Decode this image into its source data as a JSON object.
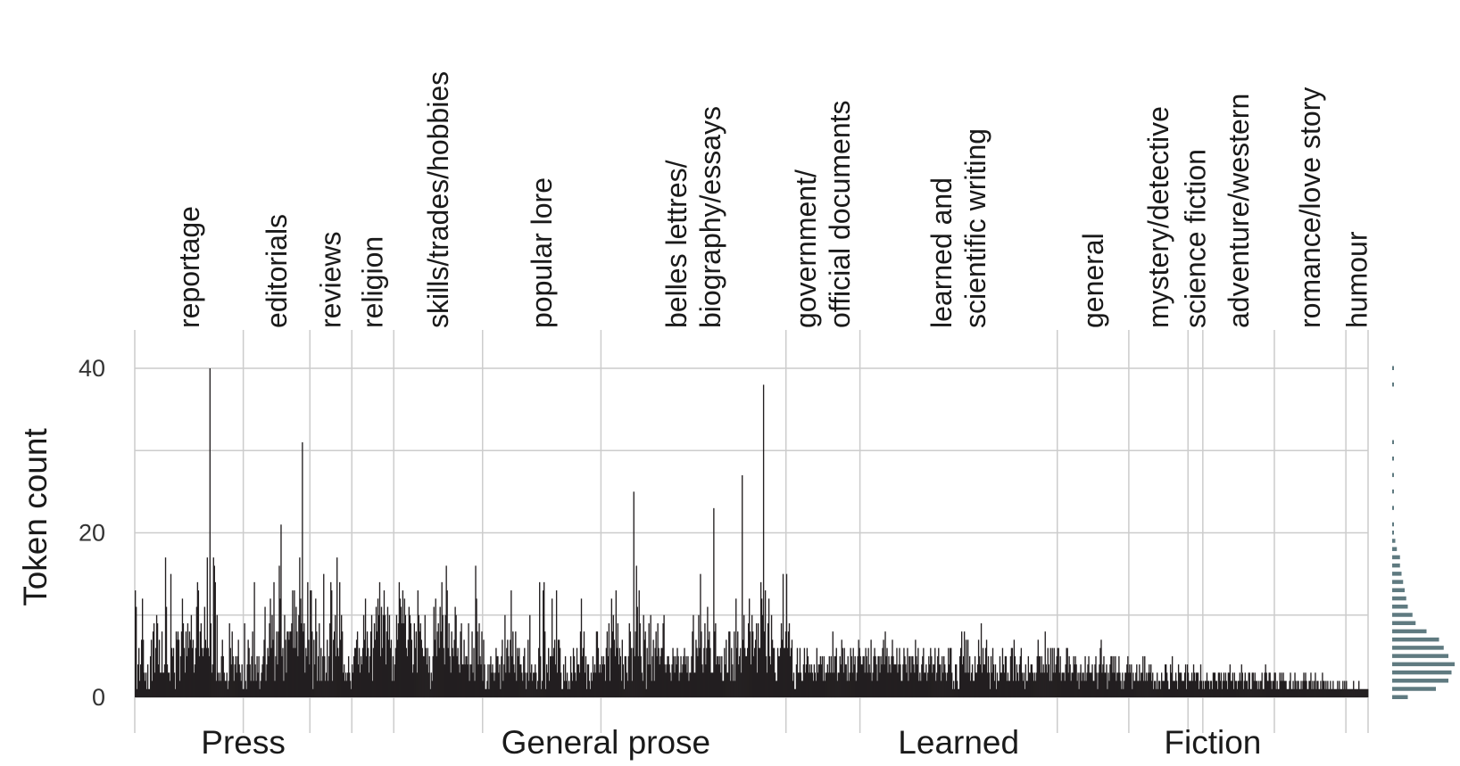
{
  "colors": {
    "bar": "#231f20",
    "grid": "#cccccc",
    "histogram": "#5f7a80",
    "background": "#ffffff"
  },
  "chart_data": {
    "type": "bar",
    "ylabel": "Token count",
    "ylim": [
      0,
      40
    ],
    "y_ticks": [
      0,
      20,
      40
    ],
    "grid": true,
    "genres": [
      {
        "label": "reportage",
        "lines": [
          "reportage"
        ],
        "group": "Press",
        "count": 44
      },
      {
        "label": "editorials",
        "lines": [
          "editorials"
        ],
        "group": "Press",
        "count": 27
      },
      {
        "label": "reviews",
        "lines": [
          "reviews"
        ],
        "group": "Press",
        "count": 17
      },
      {
        "label": "religion",
        "lines": [
          "religion"
        ],
        "group": "General prose",
        "count": 17
      },
      {
        "label": "skills/trades/hobbies",
        "lines": [
          "skills/trades/hobbies"
        ],
        "group": "General prose",
        "count": 36
      },
      {
        "label": "popular lore",
        "lines": [
          "popular lore"
        ],
        "group": "General prose",
        "count": 48
      },
      {
        "label": "belles lettres/ biography/essays",
        "lines": [
          "belles lettres/",
          "biography/essays"
        ],
        "group": "General prose",
        "count": 75
      },
      {
        "label": "government/ official documents",
        "lines": [
          "government/",
          "official documents"
        ],
        "group": "General prose",
        "count": 30
      },
      {
        "label": "learned and scientific writing",
        "lines": [
          "learned and",
          "scientific writing"
        ],
        "group": "Learned",
        "count": 80
      },
      {
        "label": "general",
        "lines": [
          "general"
        ],
        "group": "Fiction",
        "count": 29
      },
      {
        "label": "mystery/detective",
        "lines": [
          "mystery/detective"
        ],
        "group": "Fiction",
        "count": 24
      },
      {
        "label": "science fiction",
        "lines": [
          "science fiction"
        ],
        "group": "Fiction",
        "count": 6
      },
      {
        "label": "adventure/western",
        "lines": [
          "adventure/western"
        ],
        "group": "Fiction",
        "count": 29
      },
      {
        "label": "romance/love story",
        "lines": [
          "romance/love story"
        ],
        "group": "Fiction",
        "count": 29
      },
      {
        "label": "humour",
        "lines": [
          "humour"
        ],
        "group": "Fiction",
        "count": 9
      }
    ],
    "groups": [
      "Press",
      "General prose",
      "Learned",
      "Fiction"
    ],
    "values": [
      13,
      11,
      1,
      4,
      6,
      2,
      4,
      7,
      12,
      7,
      3,
      2,
      3,
      1,
      4,
      1,
      1,
      5,
      7,
      2,
      8,
      9,
      3,
      6,
      10,
      9,
      4,
      7,
      3,
      3,
      8,
      3,
      3,
      4,
      17,
      11,
      4,
      3,
      3,
      2,
      15,
      6,
      5,
      6,
      3,
      1,
      8,
      7,
      8,
      7,
      2,
      5,
      8,
      12,
      9,
      6,
      3,
      8,
      5,
      9,
      6,
      8,
      7,
      10,
      6,
      7,
      3,
      4,
      6,
      11,
      14,
      13,
      5,
      8,
      9,
      6,
      5,
      6,
      11,
      7,
      6,
      17,
      6,
      5,
      40,
      9,
      3,
      4,
      17,
      16,
      14,
      2,
      10,
      3,
      2,
      3,
      2,
      5,
      7,
      5,
      3,
      2,
      2,
      3,
      1,
      2,
      9,
      6,
      4,
      8,
      5,
      2,
      4,
      5,
      3,
      5,
      7,
      4,
      3,
      2,
      4,
      1,
      1,
      9,
      2,
      1,
      4,
      7,
      6,
      4,
      2,
      5,
      8,
      2,
      14,
      4,
      2,
      5,
      3,
      5,
      1,
      2,
      3,
      4,
      5,
      7,
      11,
      2,
      4,
      6,
      5,
      9,
      12,
      6,
      10,
      7,
      14,
      2,
      5,
      8,
      4,
      8,
      16,
      12,
      21,
      5,
      6,
      2,
      10,
      7,
      3,
      8,
      8,
      7,
      8,
      8,
      9,
      13,
      6,
      13,
      6,
      11,
      8,
      5,
      10,
      17,
      12,
      9,
      31,
      8,
      9,
      3,
      6,
      5,
      14,
      7,
      4,
      13,
      13,
      8,
      1,
      7,
      4,
      12,
      8,
      2,
      5,
      9,
      2,
      6,
      2,
      5,
      15,
      5,
      2,
      3,
      7,
      2,
      5,
      9,
      14,
      13,
      2,
      7,
      8,
      10,
      5,
      17,
      6,
      5,
      14,
      7,
      10,
      8,
      3,
      4,
      2,
      3,
      2,
      3,
      5,
      3,
      2,
      1,
      4,
      3,
      5,
      6,
      6,
      7,
      8,
      4,
      6,
      3,
      5,
      4,
      6,
      10,
      7,
      12,
      5,
      8,
      6,
      3,
      5,
      8,
      10,
      2,
      6,
      9,
      7,
      11,
      8,
      12,
      10,
      14,
      5,
      11,
      6,
      10,
      13,
      10,
      4,
      8,
      11,
      7,
      10,
      6,
      7,
      2,
      5,
      2,
      4,
      6,
      10,
      7,
      9,
      14,
      12,
      11,
      9,
      13,
      9,
      12,
      10,
      6,
      5,
      7,
      11,
      10,
      9,
      7,
      3,
      4,
      9,
      6,
      8,
      3,
      13,
      10,
      8,
      9,
      7,
      6,
      5,
      5,
      10,
      6,
      4,
      6,
      3,
      5,
      1,
      3,
      2,
      5,
      11,
      7,
      12,
      5,
      8,
      9,
      6,
      11,
      8,
      14,
      10,
      6,
      4,
      10,
      16,
      13,
      6,
      9,
      5,
      3,
      8,
      6,
      5,
      7,
      11,
      10,
      5,
      6,
      4,
      3,
      8,
      9,
      4,
      4,
      7,
      4,
      5,
      5,
      4,
      9,
      2,
      4,
      4,
      8,
      3,
      6,
      2,
      16,
      12,
      8,
      4,
      9,
      5,
      4,
      8,
      2,
      7,
      4,
      1,
      1,
      2,
      4,
      1,
      4,
      5,
      3,
      4,
      3,
      2,
      3,
      6,
      5,
      5,
      3,
      4,
      1,
      5,
      7,
      2,
      4,
      10,
      3,
      6,
      7,
      5,
      3,
      7,
      13,
      5,
      8,
      4,
      3,
      8,
      2,
      6,
      5,
      6,
      4,
      4,
      3,
      2,
      5,
      6,
      3,
      1,
      3,
      7,
      2,
      10,
      3,
      4,
      2,
      3,
      3,
      4,
      3,
      1,
      2,
      6,
      14,
      5,
      1,
      2,
      13,
      14,
      8,
      1,
      4,
      3,
      6,
      2,
      5,
      5,
      12,
      5,
      6,
      7,
      4,
      13,
      3,
      7,
      7,
      6,
      3,
      1,
      1,
      4,
      2,
      5,
      2,
      3,
      1,
      2,
      1,
      5,
      3,
      2,
      6,
      5,
      3,
      2,
      6,
      4,
      4,
      3,
      8,
      12,
      5,
      6,
      8,
      3,
      5,
      1,
      4,
      4,
      2,
      1,
      3,
      2,
      5,
      3,
      4,
      3,
      8,
      8,
      6,
      3,
      4,
      3,
      5,
      4,
      5,
      4,
      2,
      6,
      8,
      5,
      9,
      2,
      6,
      12,
      8,
      10,
      7,
      5,
      13,
      6,
      9,
      4,
      6,
      5,
      2,
      7,
      4,
      1,
      5,
      5,
      3,
      2,
      5,
      9,
      8,
      6,
      2,
      6,
      25,
      5,
      8,
      16,
      11,
      5,
      13,
      9,
      5,
      3,
      2,
      10,
      7,
      8,
      1,
      6,
      4,
      9,
      4,
      10,
      2,
      5,
      7,
      2,
      6,
      8,
      5,
      9,
      6,
      4,
      5,
      6,
      6,
      9,
      10,
      4,
      3,
      4,
      5,
      5,
      4,
      3,
      2,
      4,
      6,
      5,
      3,
      5,
      4,
      6,
      5,
      2,
      3,
      5,
      3,
      4,
      5,
      6,
      4,
      5,
      3,
      5,
      2,
      3,
      3,
      5,
      8,
      10,
      3,
      3,
      7,
      6,
      5,
      10,
      6,
      15,
      8,
      4,
      3,
      6,
      9,
      4,
      6,
      11,
      7,
      8,
      6,
      3,
      3,
      3,
      23,
      8,
      9,
      4,
      5,
      5,
      4,
      5,
      3,
      5,
      2,
      2,
      6,
      4,
      7,
      3,
      3,
      8,
      8,
      2,
      6,
      4,
      2,
      8,
      2,
      12,
      6,
      8,
      4,
      5,
      6,
      3,
      27,
      7,
      10,
      6,
      5,
      5,
      6,
      9,
      12,
      8,
      4,
      10,
      8,
      5,
      6,
      7,
      9,
      3,
      9,
      6,
      6,
      14,
      12,
      10,
      38,
      8,
      13,
      5,
      3,
      9,
      12,
      5,
      4,
      10,
      7,
      6,
      6,
      3,
      2,
      2,
      6,
      5,
      5,
      6,
      9,
      7,
      15,
      6,
      6,
      8,
      15,
      6,
      8,
      9,
      5,
      6,
      7,
      2,
      3,
      1,
      1,
      4,
      6,
      3,
      3,
      6,
      3,
      2,
      2,
      4,
      6,
      3,
      4,
      6,
      5,
      3,
      4,
      3,
      4,
      3,
      2,
      4,
      3,
      2,
      6,
      3,
      4,
      4,
      5,
      4,
      5,
      2,
      5,
      2,
      3,
      3,
      4,
      3,
      5,
      3,
      5,
      3,
      8,
      3,
      5,
      5,
      6,
      2,
      3,
      3,
      5,
      4,
      7,
      6,
      3,
      6,
      4,
      4,
      2,
      5,
      2,
      3,
      6,
      5,
      3,
      6,
      4,
      5,
      2,
      3,
      5,
      7,
      6,
      5,
      4,
      4,
      5,
      5,
      3,
      6,
      5,
      3,
      6,
      4,
      3,
      7,
      2,
      3,
      5,
      6,
      5,
      4,
      2,
      5,
      5,
      3,
      5,
      4,
      6,
      7,
      4,
      8,
      5,
      6,
      3,
      5,
      4,
      3,
      5,
      7,
      5,
      4,
      4,
      4,
      6,
      3,
      4,
      6,
      4,
      2,
      2,
      4,
      6,
      5,
      4,
      3,
      6,
      2,
      5,
      5,
      3,
      5,
      5,
      4,
      3,
      7,
      5,
      4,
      6,
      2,
      3,
      2,
      4,
      5,
      6,
      3,
      3,
      4,
      2,
      3,
      5,
      4,
      6,
      5,
      3,
      4,
      4,
      6,
      2,
      3,
      5,
      6,
      4,
      4,
      2,
      5,
      3,
      5,
      4,
      3,
      2,
      3,
      6,
      4,
      6,
      6,
      3,
      1,
      2,
      1,
      4,
      4,
      2,
      1,
      1,
      5,
      6,
      8,
      4,
      5,
      8,
      3,
      7,
      3,
      7,
      3,
      5,
      2,
      3,
      4,
      2,
      2,
      5,
      3,
      3,
      4,
      7,
      5,
      4,
      9,
      3,
      6,
      4,
      4,
      6,
      7,
      3,
      5,
      3,
      1,
      5,
      3,
      6,
      4,
      2,
      4,
      1,
      3,
      2,
      2,
      5,
      3,
      3,
      6,
      4,
      3,
      5,
      5,
      2,
      3,
      2,
      2,
      5,
      6,
      6,
      2,
      7,
      5,
      2,
      4,
      3,
      2,
      4,
      5,
      6,
      3,
      2,
      3,
      1,
      4,
      2,
      2,
      5,
      3,
      3,
      4,
      4,
      3,
      2,
      3,
      2,
      3,
      5,
      7,
      5,
      5,
      3,
      5,
      3,
      4,
      3,
      8,
      4,
      3,
      6,
      4,
      2,
      6,
      2,
      6,
      3,
      6,
      3,
      4,
      5,
      6,
      6,
      3,
      5,
      2,
      3,
      3,
      3,
      2,
      4,
      6,
      6,
      3,
      5,
      4,
      2,
      3,
      3,
      5,
      4,
      5,
      4,
      2,
      3,
      1,
      3,
      4,
      2,
      3,
      3,
      2,
      5,
      2,
      3,
      4,
      5,
      3,
      3,
      3,
      4,
      2,
      2,
      4,
      5,
      3,
      1,
      3,
      4,
      6,
      7,
      3,
      4,
      5,
      3,
      3,
      4,
      1,
      3,
      2,
      4,
      5,
      5,
      3,
      5,
      3,
      5,
      2,
      3,
      3,
      5,
      3,
      2,
      1,
      3,
      1,
      2,
      3,
      3,
      4,
      5,
      3,
      4,
      3,
      4,
      1,
      3,
      2,
      2,
      3,
      4,
      2,
      2,
      4,
      2,
      3,
      3,
      5,
      2,
      5,
      2,
      3,
      2,
      3,
      4,
      3,
      4,
      2,
      3,
      1,
      2,
      2,
      1,
      3,
      1,
      2,
      2,
      1,
      3,
      2,
      2,
      2,
      4,
      4,
      3,
      2,
      1,
      1,
      4,
      3,
      5,
      2,
      2,
      2,
      3,
      2,
      1,
      4,
      3,
      3,
      3,
      2,
      2,
      2,
      3,
      4,
      1,
      4,
      3,
      2,
      2,
      2,
      3,
      2,
      4,
      3,
      2,
      3,
      3,
      3,
      1,
      2,
      4,
      2,
      1,
      2,
      1,
      2,
      2,
      3,
      2,
      2,
      1,
      2,
      2,
      1,
      3,
      3,
      3,
      2,
      2,
      1,
      3,
      3,
      2,
      3,
      1,
      2,
      3,
      2,
      3,
      2,
      1,
      3,
      3,
      4,
      2,
      2,
      3,
      1,
      3,
      2,
      2,
      1,
      2,
      2,
      3,
      2,
      4,
      3,
      1,
      2,
      3,
      2,
      2,
      1,
      3,
      3,
      1,
      1,
      3,
      3,
      2,
      3,
      2,
      2,
      1,
      2,
      1,
      2,
      2,
      3,
      1,
      1,
      3,
      4,
      3,
      2,
      2,
      3,
      3,
      2,
      1,
      2,
      2,
      3,
      3,
      1,
      2,
      1,
      1,
      3,
      2,
      3,
      2,
      3,
      2,
      2,
      2,
      1,
      1,
      1,
      2,
      3,
      1,
      1,
      2,
      1,
      3,
      2,
      1,
      2,
      2,
      1,
      1,
      2,
      1,
      2,
      3,
      2,
      3,
      2,
      1,
      1,
      2,
      2,
      3,
      1,
      2,
      1,
      2,
      3,
      1,
      2,
      2,
      1,
      1,
      2,
      1,
      3,
      2,
      2,
      1,
      2,
      1,
      2,
      1,
      1,
      2,
      1,
      1,
      2,
      1,
      1,
      1,
      1,
      2,
      1,
      2,
      1,
      1,
      1,
      2,
      1,
      2,
      1,
      2,
      1,
      1,
      1,
      1,
      1,
      1,
      1,
      2,
      1,
      1,
      1,
      1,
      1,
      2,
      1,
      1,
      1,
      1,
      1,
      1,
      1,
      1,
      1,
      1
    ],
    "marginal_histogram": {
      "y_bins": [
        0,
        1,
        2,
        3,
        4,
        5,
        6,
        7,
        8,
        9,
        10,
        11,
        12,
        13,
        14,
        15,
        16,
        17,
        18,
        19,
        20,
        21,
        23,
        25,
        27,
        29,
        31,
        38,
        40
      ],
      "counts": [
        10,
        28,
        36,
        38,
        40,
        36,
        33,
        30,
        22,
        15,
        13,
        10,
        9,
        8,
        7,
        6,
        5,
        5,
        3,
        2,
        1,
        1,
        1,
        1,
        1,
        1,
        1,
        1,
        1
      ]
    }
  }
}
